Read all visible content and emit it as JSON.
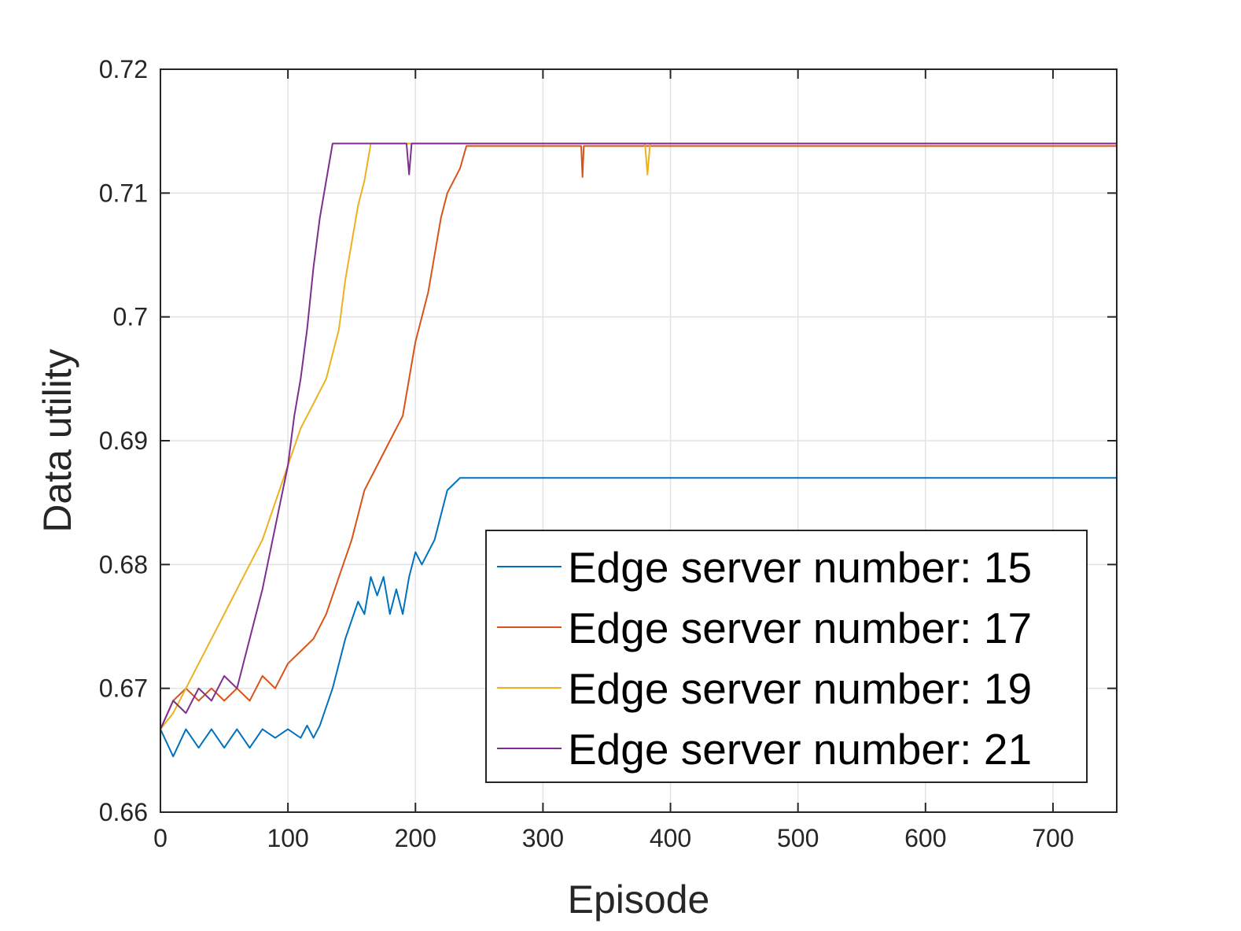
{
  "chart_data": {
    "type": "line",
    "xlabel": "Episode",
    "ylabel": "Data utility",
    "xlim": [
      0,
      750
    ],
    "ylim": [
      0.66,
      0.72
    ],
    "xticks": [
      "0",
      "100",
      "200",
      "300",
      "400",
      "500",
      "600",
      "700"
    ],
    "yticks": [
      "0.66",
      "0.67",
      "0.68",
      "0.69",
      "0.7",
      "0.71",
      "0.72"
    ],
    "grid": true,
    "legend_position": "bottom-right",
    "series": [
      {
        "name": "Edge server number: 15",
        "color": "#0072BD",
        "points": [
          [
            0,
            0.6667
          ],
          [
            10,
            0.6645
          ],
          [
            20,
            0.6667
          ],
          [
            30,
            0.6652
          ],
          [
            40,
            0.6667
          ],
          [
            50,
            0.6652
          ],
          [
            60,
            0.6667
          ],
          [
            70,
            0.6652
          ],
          [
            80,
            0.6667
          ],
          [
            90,
            0.666
          ],
          [
            100,
            0.6667
          ],
          [
            110,
            0.666
          ],
          [
            115,
            0.667
          ],
          [
            120,
            0.666
          ],
          [
            125,
            0.667
          ],
          [
            130,
            0.6685
          ],
          [
            135,
            0.67
          ],
          [
            140,
            0.672
          ],
          [
            145,
            0.674
          ],
          [
            150,
            0.6755
          ],
          [
            155,
            0.677
          ],
          [
            160,
            0.676
          ],
          [
            165,
            0.679
          ],
          [
            170,
            0.6775
          ],
          [
            175,
            0.679
          ],
          [
            180,
            0.676
          ],
          [
            185,
            0.678
          ],
          [
            190,
            0.676
          ],
          [
            195,
            0.679
          ],
          [
            200,
            0.681
          ],
          [
            205,
            0.68
          ],
          [
            210,
            0.681
          ],
          [
            215,
            0.682
          ],
          [
            220,
            0.684
          ],
          [
            225,
            0.686
          ],
          [
            230,
            0.6865
          ],
          [
            235,
            0.687
          ],
          [
            240,
            0.687
          ],
          [
            750,
            0.687
          ]
        ]
      },
      {
        "name": "Edge server number: 17",
        "color": "#D95319",
        "points": [
          [
            0,
            0.6667
          ],
          [
            10,
            0.669
          ],
          [
            20,
            0.67
          ],
          [
            30,
            0.669
          ],
          [
            40,
            0.67
          ],
          [
            50,
            0.669
          ],
          [
            60,
            0.67
          ],
          [
            70,
            0.669
          ],
          [
            80,
            0.671
          ],
          [
            90,
            0.67
          ],
          [
            100,
            0.672
          ],
          [
            110,
            0.673
          ],
          [
            120,
            0.674
          ],
          [
            130,
            0.676
          ],
          [
            140,
            0.679
          ],
          [
            150,
            0.682
          ],
          [
            160,
            0.686
          ],
          [
            170,
            0.688
          ],
          [
            180,
            0.69
          ],
          [
            190,
            0.692
          ],
          [
            195,
            0.695
          ],
          [
            200,
            0.698
          ],
          [
            205,
            0.7
          ],
          [
            210,
            0.702
          ],
          [
            215,
            0.705
          ],
          [
            220,
            0.708
          ],
          [
            225,
            0.71
          ],
          [
            230,
            0.711
          ],
          [
            235,
            0.712
          ],
          [
            240,
            0.7138
          ],
          [
            330,
            0.7138
          ],
          [
            331,
            0.7113
          ],
          [
            332,
            0.7138
          ],
          [
            750,
            0.7138
          ]
        ]
      },
      {
        "name": "Edge server number: 19",
        "color": "#EDB120",
        "points": [
          [
            0,
            0.6667
          ],
          [
            10,
            0.668
          ],
          [
            20,
            0.67
          ],
          [
            30,
            0.672
          ],
          [
            40,
            0.674
          ],
          [
            50,
            0.676
          ],
          [
            60,
            0.678
          ],
          [
            70,
            0.68
          ],
          [
            80,
            0.682
          ],
          [
            90,
            0.685
          ],
          [
            100,
            0.688
          ],
          [
            110,
            0.691
          ],
          [
            120,
            0.693
          ],
          [
            130,
            0.695
          ],
          [
            140,
            0.699
          ],
          [
            145,
            0.703
          ],
          [
            150,
            0.706
          ],
          [
            155,
            0.709
          ],
          [
            160,
            0.711
          ],
          [
            165,
            0.714
          ],
          [
            380,
            0.714
          ],
          [
            382,
            0.7115
          ],
          [
            384,
            0.714
          ],
          [
            750,
            0.714
          ]
        ]
      },
      {
        "name": "Edge server number: 21",
        "color": "#7E2F8E",
        "points": [
          [
            0,
            0.6667
          ],
          [
            10,
            0.669
          ],
          [
            20,
            0.668
          ],
          [
            30,
            0.67
          ],
          [
            40,
            0.669
          ],
          [
            50,
            0.671
          ],
          [
            60,
            0.67
          ],
          [
            70,
            0.674
          ],
          [
            80,
            0.678
          ],
          [
            90,
            0.683
          ],
          [
            100,
            0.688
          ],
          [
            105,
            0.692
          ],
          [
            110,
            0.695
          ],
          [
            115,
            0.699
          ],
          [
            120,
            0.704
          ],
          [
            125,
            0.708
          ],
          [
            130,
            0.711
          ],
          [
            135,
            0.714
          ],
          [
            193,
            0.714
          ],
          [
            195,
            0.7115
          ],
          [
            197,
            0.714
          ],
          [
            750,
            0.714
          ]
        ]
      }
    ]
  }
}
